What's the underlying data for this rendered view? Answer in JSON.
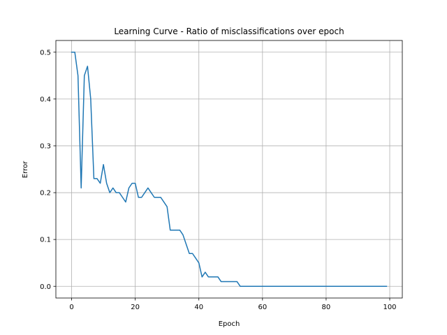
{
  "chart_data": {
    "type": "line",
    "title": "Learning Curve - Ratio of misclassifications over epoch",
    "xlabel": "Epoch",
    "ylabel": "Error",
    "xlim": [
      -4.95,
      103.95
    ],
    "ylim": [
      -0.025,
      0.525
    ],
    "xticks": [
      0,
      20,
      40,
      60,
      80,
      100
    ],
    "yticks": [
      0.0,
      0.1,
      0.2,
      0.3,
      0.4,
      0.5
    ],
    "xtick_labels": [
      "0",
      "20",
      "40",
      "60",
      "80",
      "100"
    ],
    "ytick_labels": [
      "0.0",
      "0.1",
      "0.2",
      "0.3",
      "0.4",
      "0.5"
    ],
    "grid": true,
    "series": [
      {
        "color": "#1f77b4",
        "x": [
          0,
          1,
          2,
          3,
          4,
          5,
          6,
          7,
          8,
          9,
          10,
          11,
          12,
          13,
          14,
          15,
          16,
          17,
          18,
          19,
          20,
          21,
          22,
          23,
          24,
          25,
          26,
          27,
          28,
          29,
          30,
          31,
          32,
          33,
          34,
          35,
          36,
          37,
          38,
          39,
          40,
          41,
          42,
          43,
          44,
          45,
          46,
          47,
          48,
          49,
          50,
          51,
          52,
          53,
          54,
          55,
          56,
          57,
          58,
          59,
          60,
          61,
          62,
          63,
          64,
          65,
          66,
          67,
          68,
          69,
          70,
          71,
          72,
          73,
          74,
          75,
          76,
          77,
          78,
          79,
          80,
          81,
          82,
          83,
          84,
          85,
          86,
          87,
          88,
          89,
          90,
          91,
          92,
          93,
          94,
          95,
          96,
          97,
          98,
          99
        ],
        "values": [
          0.5,
          0.5,
          0.45,
          0.21,
          0.45,
          0.47,
          0.4,
          0.23,
          0.23,
          0.22,
          0.26,
          0.22,
          0.2,
          0.21,
          0.2,
          0.2,
          0.19,
          0.18,
          0.21,
          0.22,
          0.22,
          0.19,
          0.19,
          0.2,
          0.21,
          0.2,
          0.19,
          0.19,
          0.19,
          0.18,
          0.17,
          0.12,
          0.12,
          0.12,
          0.12,
          0.11,
          0.09,
          0.07,
          0.07,
          0.06,
          0.05,
          0.02,
          0.03,
          0.02,
          0.02,
          0.02,
          0.02,
          0.01,
          0.01,
          0.01,
          0.01,
          0.01,
          0.01,
          0.0,
          0.0,
          0.0,
          0.0,
          0.0,
          0.0,
          0.0,
          0.0,
          0.0,
          0.0,
          0.0,
          0.0,
          0.0,
          0.0,
          0.0,
          0.0,
          0.0,
          0.0,
          0.0,
          0.0,
          0.0,
          0.0,
          0.0,
          0.0,
          0.0,
          0.0,
          0.0,
          0.0,
          0.0,
          0.0,
          0.0,
          0.0,
          0.0,
          0.0,
          0.0,
          0.0,
          0.0,
          0.0,
          0.0,
          0.0,
          0.0,
          0.0,
          0.0,
          0.0,
          0.0,
          0.0,
          0.0
        ]
      }
    ]
  }
}
